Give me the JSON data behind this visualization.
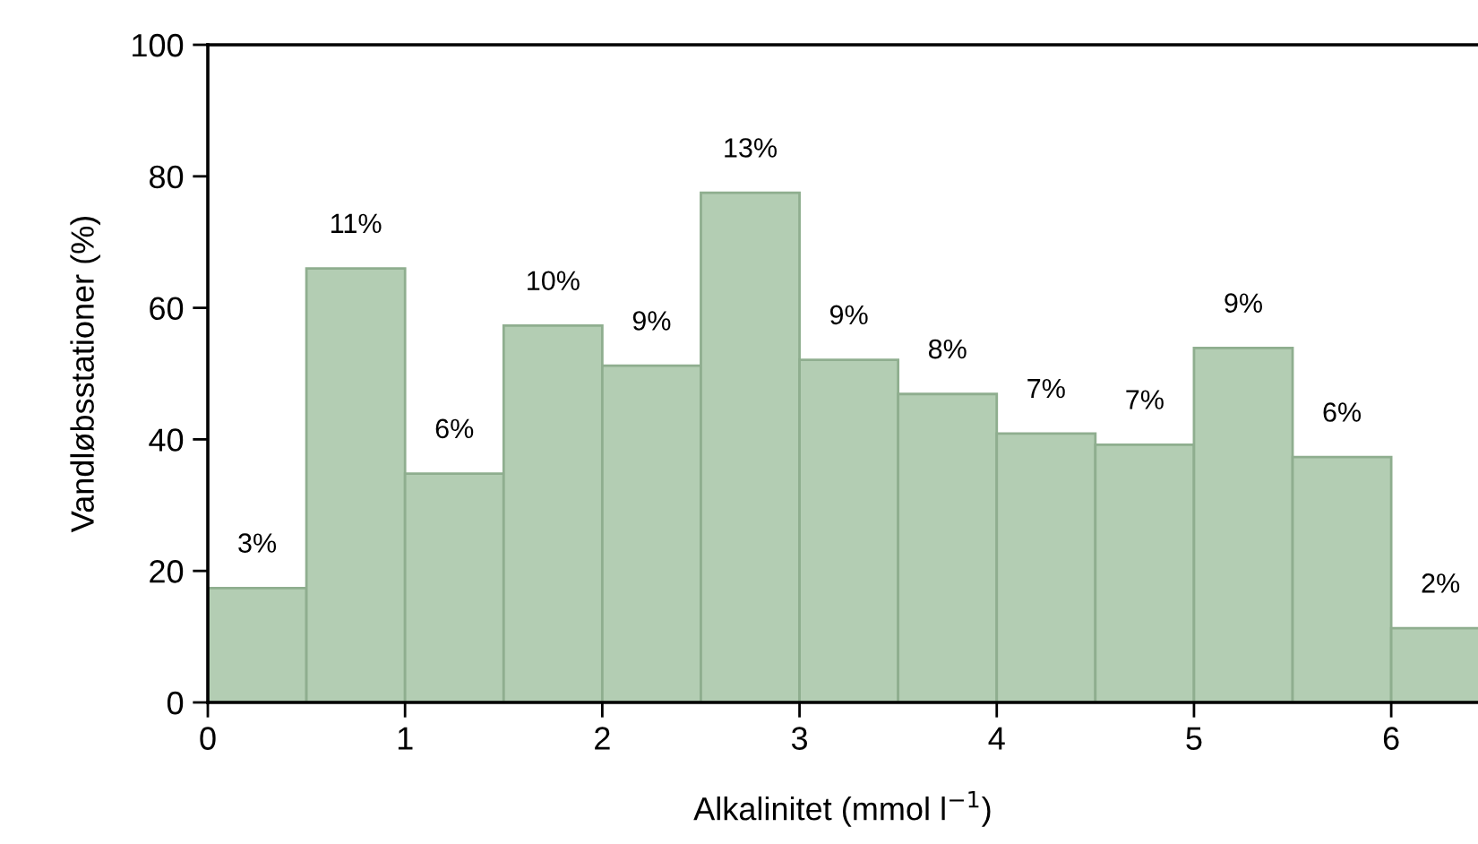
{
  "chart_data": {
    "type": "histogram",
    "xlabel": "Alkalinitet (mmol l$^{−1}$)",
    "ylabel": "Vandløbsstationer (%)",
    "bins": [
      0,
      0.5,
      1,
      1.5,
      2,
      2.5,
      3,
      3.5,
      4,
      4.5,
      5,
      5.5,
      6,
      6.5
    ],
    "values": [
      17.4,
      66.0,
      34.8,
      57.3,
      51.2,
      77.5,
      52.1,
      46.9,
      40.9,
      39.2,
      53.9,
      37.3,
      11.3
    ],
    "annotations": [
      {
        "text": "3%",
        "x": 0.25,
        "y": 17.4
      },
      {
        "text": "11%",
        "x": 0.75,
        "y": 66.0
      },
      {
        "text": "6%",
        "x": 1.25,
        "y": 34.8
      },
      {
        "text": "10%",
        "x": 1.75,
        "y": 57.3
      },
      {
        "text": "9%",
        "x": 2.25,
        "y": 51.2
      },
      {
        "text": "13%",
        "x": 2.75,
        "y": 77.5
      },
      {
        "text": "9%",
        "x": 3.25,
        "y": 52.1
      },
      {
        "text": "8%",
        "x": 3.75,
        "y": 46.9
      },
      {
        "text": "7%",
        "x": 4.25,
        "y": 40.9
      },
      {
        "text": "7%",
        "x": 4.75,
        "y": 39.2
      },
      {
        "text": "9%",
        "x": 5.25,
        "y": 53.9
      },
      {
        "text": "6%",
        "x": 5.75,
        "y": 37.3
      },
      {
        "text": "2%",
        "x": 6.25,
        "y": 11.3
      }
    ],
    "color": "#b3cdb3",
    "xlim": [
      0,
      6.44
    ],
    "xticks": [
      0,
      1,
      2,
      3,
      4,
      5,
      6
    ],
    "ylim": [
      0,
      100
    ],
    "yticks": [
      0,
      20,
      40,
      60,
      80,
      100
    ],
    "grid": false
  }
}
